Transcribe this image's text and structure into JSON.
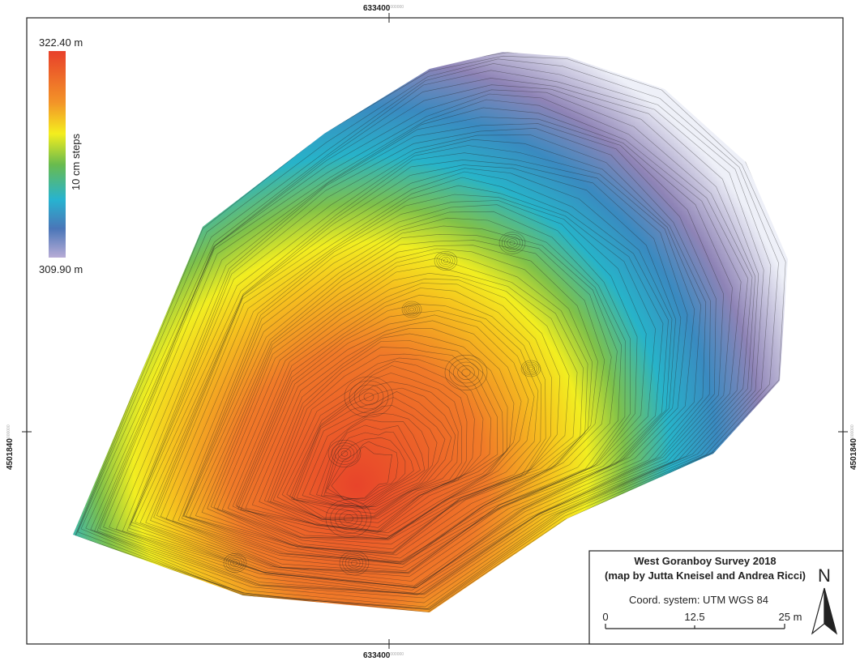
{
  "map": {
    "coordinates": {
      "top": {
        "value": "633400",
        "suffix": "000000"
      },
      "bottom": {
        "value": "633400",
        "suffix": "000000"
      },
      "left": {
        "value": "4501840",
        "suffix": "000000"
      },
      "right": {
        "value": "4501840",
        "suffix": "000000"
      }
    },
    "legend": {
      "max": "322.40 m",
      "min": "309.90 m",
      "label": "10 cm steps"
    },
    "info": {
      "title": "West Goranboy Survey 2018",
      "subtitle": "(map by Jutta Kneisel and Andrea Ricci)",
      "coord_system": "Coord. system: UTM WGS 84",
      "scale": [
        "0",
        "12.5",
        "25 m"
      ],
      "north": "N"
    }
  }
}
